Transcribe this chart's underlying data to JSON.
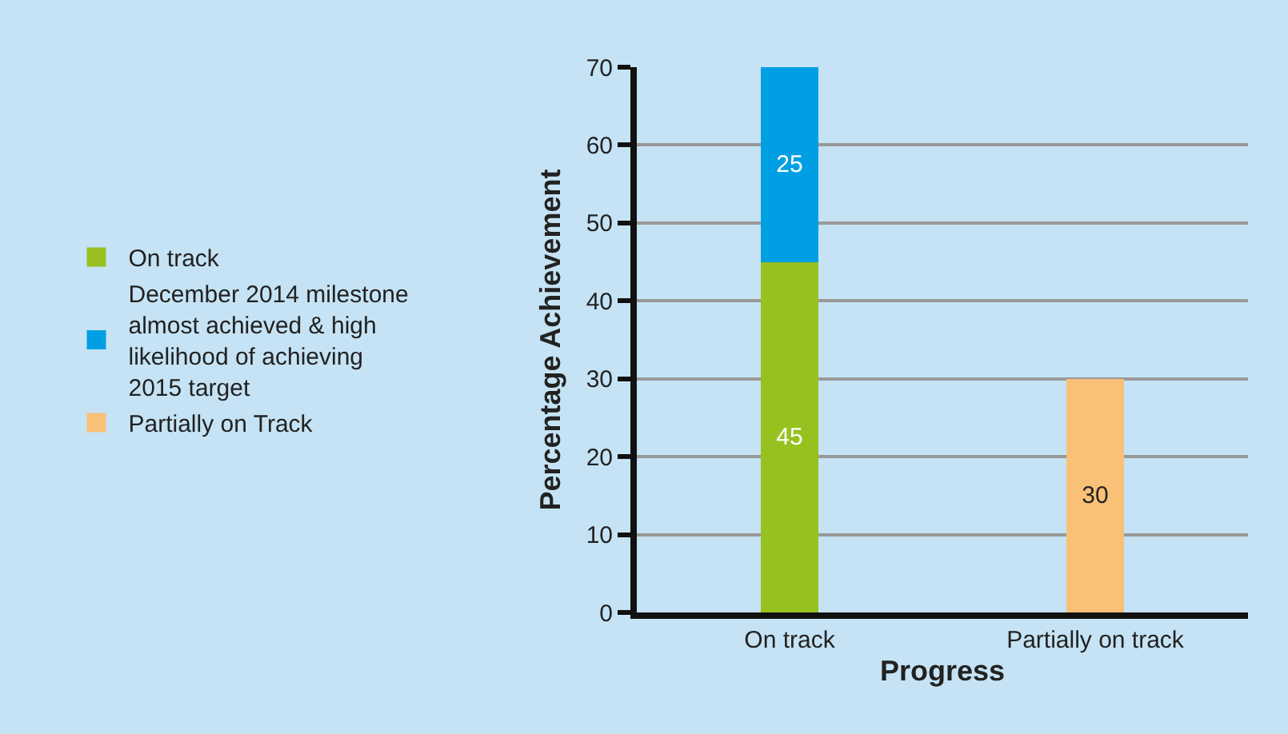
{
  "chart_data": {
    "type": "bar",
    "stacked": true,
    "xlabel": "Progress",
    "ylabel": "Percentage Achievement",
    "categories": [
      "On track",
      "Partially on track"
    ],
    "series": [
      {
        "name": "On track",
        "color": "#96c11f",
        "values": [
          45,
          null
        ]
      },
      {
        "name": "December 2014 milestone almost achieved & high likelihood of achieving 2015 target",
        "color": "#009fe3",
        "values": [
          25,
          null
        ]
      },
      {
        "name": "Partially on Track",
        "color": "#f9c077",
        "values": [
          null,
          30
        ]
      }
    ],
    "ylim": [
      0,
      70
    ],
    "yticks": [
      0,
      10,
      20,
      30,
      40,
      50,
      60,
      70
    ],
    "grid": "y",
    "legend": "left",
    "data_labels": true
  }
}
